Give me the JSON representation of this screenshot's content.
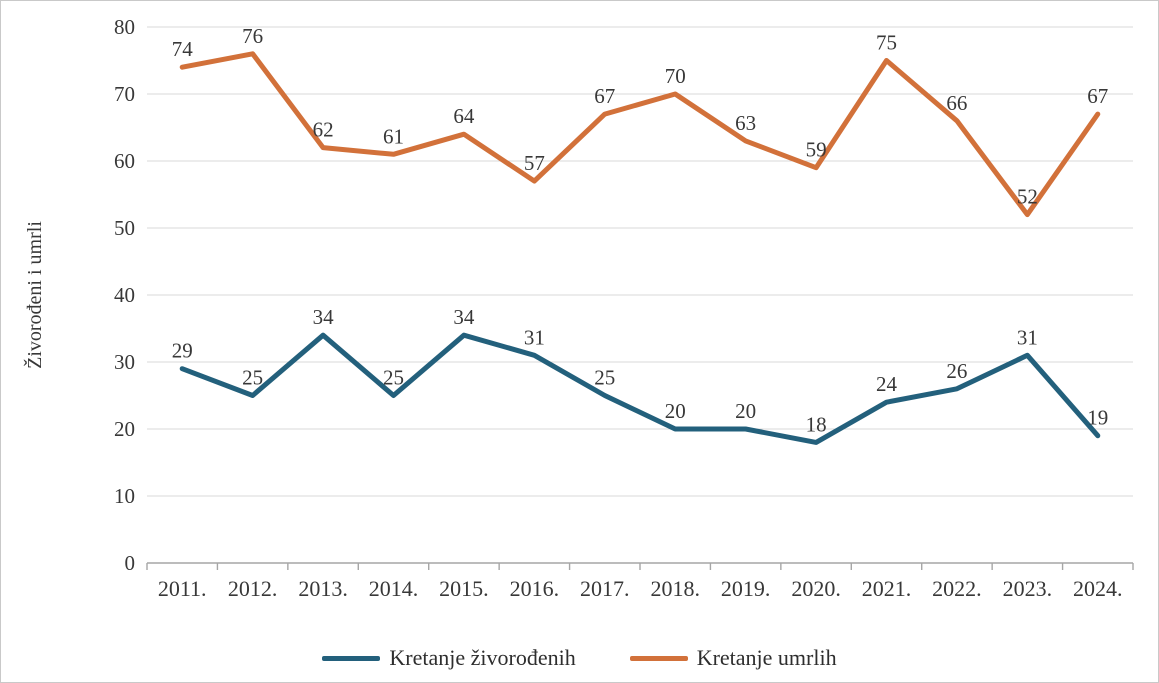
{
  "chart_data": {
    "type": "line",
    "title": "",
    "xlabel": "",
    "ylabel": "Živorođeni i umrli",
    "categories": [
      "2011.",
      "2012.",
      "2013.",
      "2014.",
      "2015.",
      "2016.",
      "2017.",
      "2018.",
      "2019.",
      "2020.",
      "2021.",
      "2022.",
      "2023.",
      "2024."
    ],
    "series": [
      {
        "name": "Kretanje živorođenih",
        "color": "#23607c",
        "values": [
          29,
          25,
          34,
          25,
          34,
          31,
          25,
          20,
          20,
          18,
          24,
          26,
          31,
          19
        ]
      },
      {
        "name": "Kretanje umrlih",
        "color": "#d2713a",
        "values": [
          74,
          76,
          62,
          61,
          64,
          57,
          67,
          70,
          63,
          59,
          75,
          66,
          52,
          67
        ]
      }
    ],
    "ylim": [
      0,
      80
    ],
    "y_ticks": [
      0,
      10,
      20,
      30,
      40,
      50,
      60,
      70,
      80
    ],
    "grid": true,
    "data_labels": true,
    "legend_position": "bottom"
  },
  "colors": {
    "grid": "#d9d9d9",
    "axis": "#a6a6a6",
    "text": "#383838",
    "background": "#ffffff",
    "frame_border": "#c9c9c9"
  }
}
